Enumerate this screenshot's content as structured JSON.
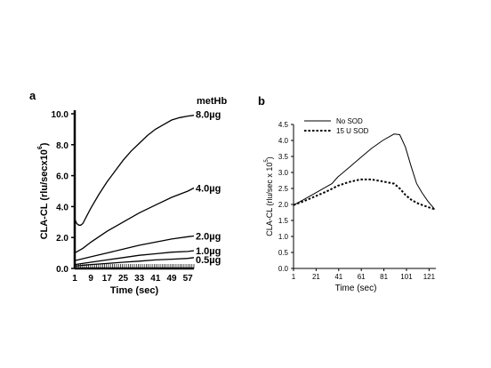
{
  "chart_data": [
    {
      "panel_label": "a",
      "type": "line",
      "xlabel": "Time (sec)",
      "ylabel": "CLA-CL (rlu/secx10",
      "ylabel_exponent": "6",
      "ylabel_close": ")",
      "legend_title": "metHb",
      "x_ticks": [
        1,
        9,
        17,
        25,
        33,
        41,
        49,
        57
      ],
      "y_ticks": [
        "0.0",
        "2.0",
        "4.0",
        "6.0",
        "8.0",
        "10.0"
      ],
      "xlim": [
        1,
        60
      ],
      "ylim": [
        0,
        10
      ],
      "series": [
        {
          "name": "8.0µg",
          "x": [
            1,
            2,
            3,
            4,
            5,
            7,
            9,
            13,
            17,
            21,
            25,
            29,
            33,
            37,
            41,
            45,
            49,
            53,
            57,
            60
          ],
          "y": [
            3.2,
            2.9,
            2.8,
            2.8,
            2.9,
            3.4,
            3.9,
            4.8,
            5.6,
            6.3,
            7.0,
            7.6,
            8.1,
            8.6,
            9.0,
            9.3,
            9.6,
            9.75,
            9.85,
            9.9
          ]
        },
        {
          "name": "4.0µg",
          "x": [
            1,
            5,
            9,
            17,
            25,
            33,
            41,
            49,
            57,
            60
          ],
          "y": [
            1.0,
            1.3,
            1.7,
            2.4,
            3.0,
            3.6,
            4.1,
            4.6,
            5.0,
            5.2
          ]
        },
        {
          "name": "2.0µg",
          "x": [
            1,
            9,
            17,
            25,
            33,
            41,
            49,
            57,
            60
          ],
          "y": [
            0.5,
            0.75,
            1.0,
            1.25,
            1.5,
            1.7,
            1.9,
            2.05,
            2.1
          ]
        },
        {
          "name": "1.0µg",
          "x": [
            1,
            9,
            17,
            25,
            33,
            41,
            49,
            57,
            60
          ],
          "y": [
            0.25,
            0.4,
            0.55,
            0.7,
            0.85,
            0.95,
            1.05,
            1.1,
            1.15
          ]
        },
        {
          "name": "0.5µg",
          "x": [
            1,
            9,
            17,
            25,
            33,
            41,
            49,
            57,
            60
          ],
          "y": [
            0.15,
            0.25,
            0.32,
            0.4,
            0.47,
            0.55,
            0.6,
            0.65,
            0.7
          ]
        }
      ]
    },
    {
      "panel_label": "b",
      "type": "line",
      "xlabel": "Time (sec)",
      "ylabel": "CLA-CL (rlu/sec x 10",
      "ylabel_exponent": "5",
      "ylabel_close": ")",
      "x_ticks": [
        1,
        21,
        41,
        61,
        81,
        101,
        121
      ],
      "y_ticks": [
        "0.0",
        "0.5",
        "1.0",
        "1.5",
        "2.0",
        "2.5",
        "3.0",
        "3.5",
        "4.0",
        "4.5"
      ],
      "xlim": [
        1,
        127
      ],
      "ylim": [
        0,
        4.5
      ],
      "legend_position": "top-left",
      "series": [
        {
          "name": "No  SOD",
          "style": "solid",
          "x": [
            1,
            10,
            20,
            30,
            35,
            40,
            50,
            60,
            70,
            80,
            90,
            95,
            100,
            105,
            110,
            115,
            120,
            126
          ],
          "y": [
            1.98,
            2.15,
            2.35,
            2.55,
            2.65,
            2.85,
            3.15,
            3.45,
            3.75,
            4.0,
            4.2,
            4.18,
            3.8,
            3.2,
            2.65,
            2.35,
            2.1,
            1.85
          ]
        },
        {
          "name": "15 U SOD",
          "style": "dashed",
          "x": [
            1,
            10,
            20,
            30,
            40,
            50,
            60,
            70,
            80,
            90,
            95,
            100,
            105,
            110,
            115,
            120,
            126
          ],
          "y": [
            1.98,
            2.1,
            2.25,
            2.4,
            2.58,
            2.7,
            2.78,
            2.78,
            2.72,
            2.65,
            2.5,
            2.3,
            2.15,
            2.05,
            1.98,
            1.92,
            1.85
          ]
        }
      ]
    }
  ]
}
